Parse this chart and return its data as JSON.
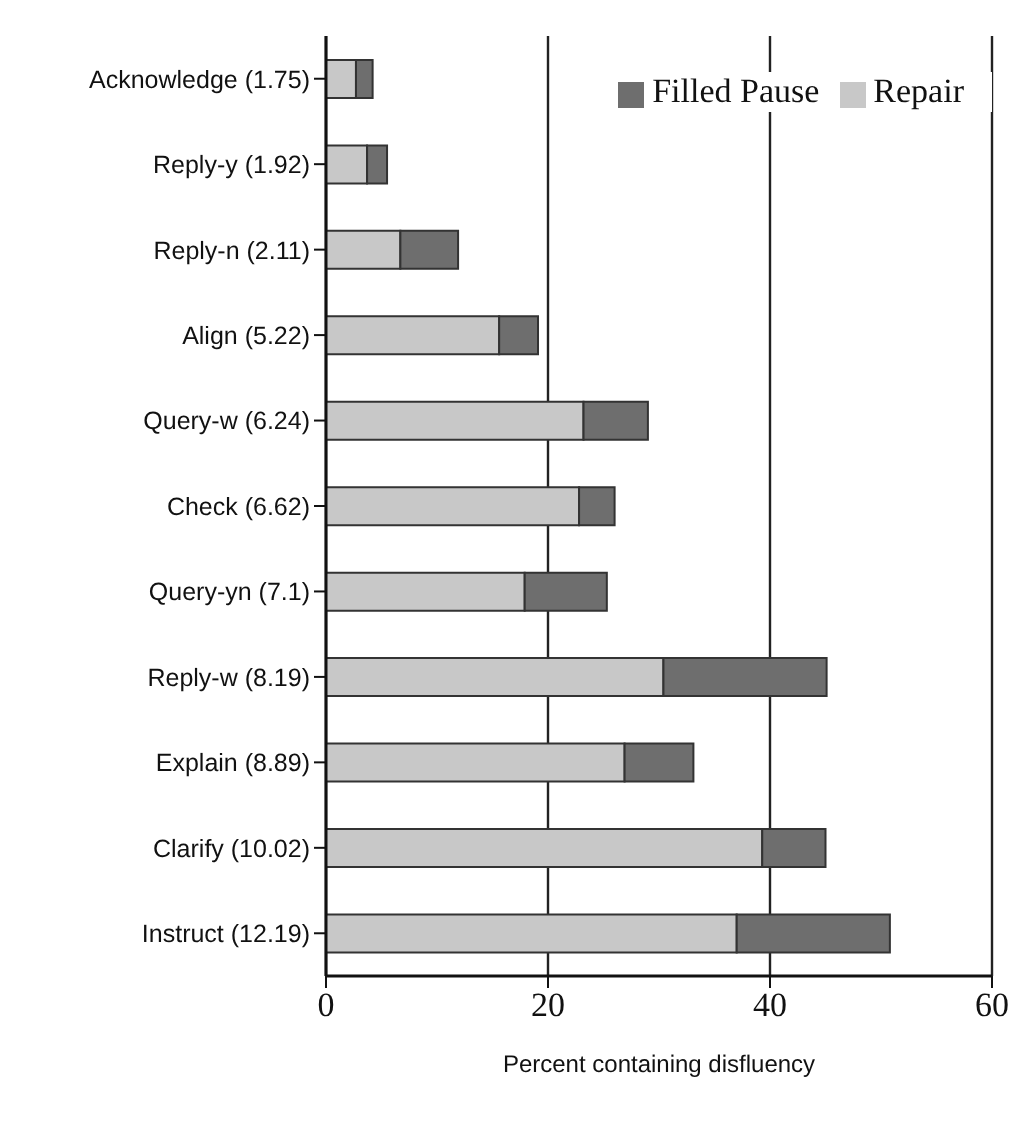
{
  "chart_data": {
    "type": "bar",
    "orientation": "horizontal",
    "stacked": true,
    "categories": [
      "Acknowledge (1.75)",
      "Reply-y (1.92)",
      "Reply-n (2.11)",
      "Align (5.22)",
      "Query-w (6.24)",
      "Check (6.62)",
      "Query-yn (7.1)",
      "Reply-w (8.19)",
      "Explain (8.89)",
      "Clarify (10.02)",
      "Instruct (12.19)"
    ],
    "series": [
      {
        "name": "Repair",
        "color": "#c8c8c8",
        "values": [
          2.7,
          3.7,
          6.7,
          15.6,
          23.2,
          22.8,
          17.9,
          30.4,
          26.9,
          39.3,
          37.0
        ]
      },
      {
        "name": "Filled Pause",
        "color": "#6e6e6e",
        "values": [
          1.5,
          1.8,
          5.2,
          3.5,
          5.8,
          3.2,
          7.4,
          14.7,
          6.2,
          5.7,
          13.8
        ]
      }
    ],
    "xlabel": "Percent containing disfluency",
    "xlim": [
      0,
      60
    ],
    "xticks": [
      0,
      20,
      40,
      60
    ],
    "grid": "x",
    "legend": "top right"
  }
}
